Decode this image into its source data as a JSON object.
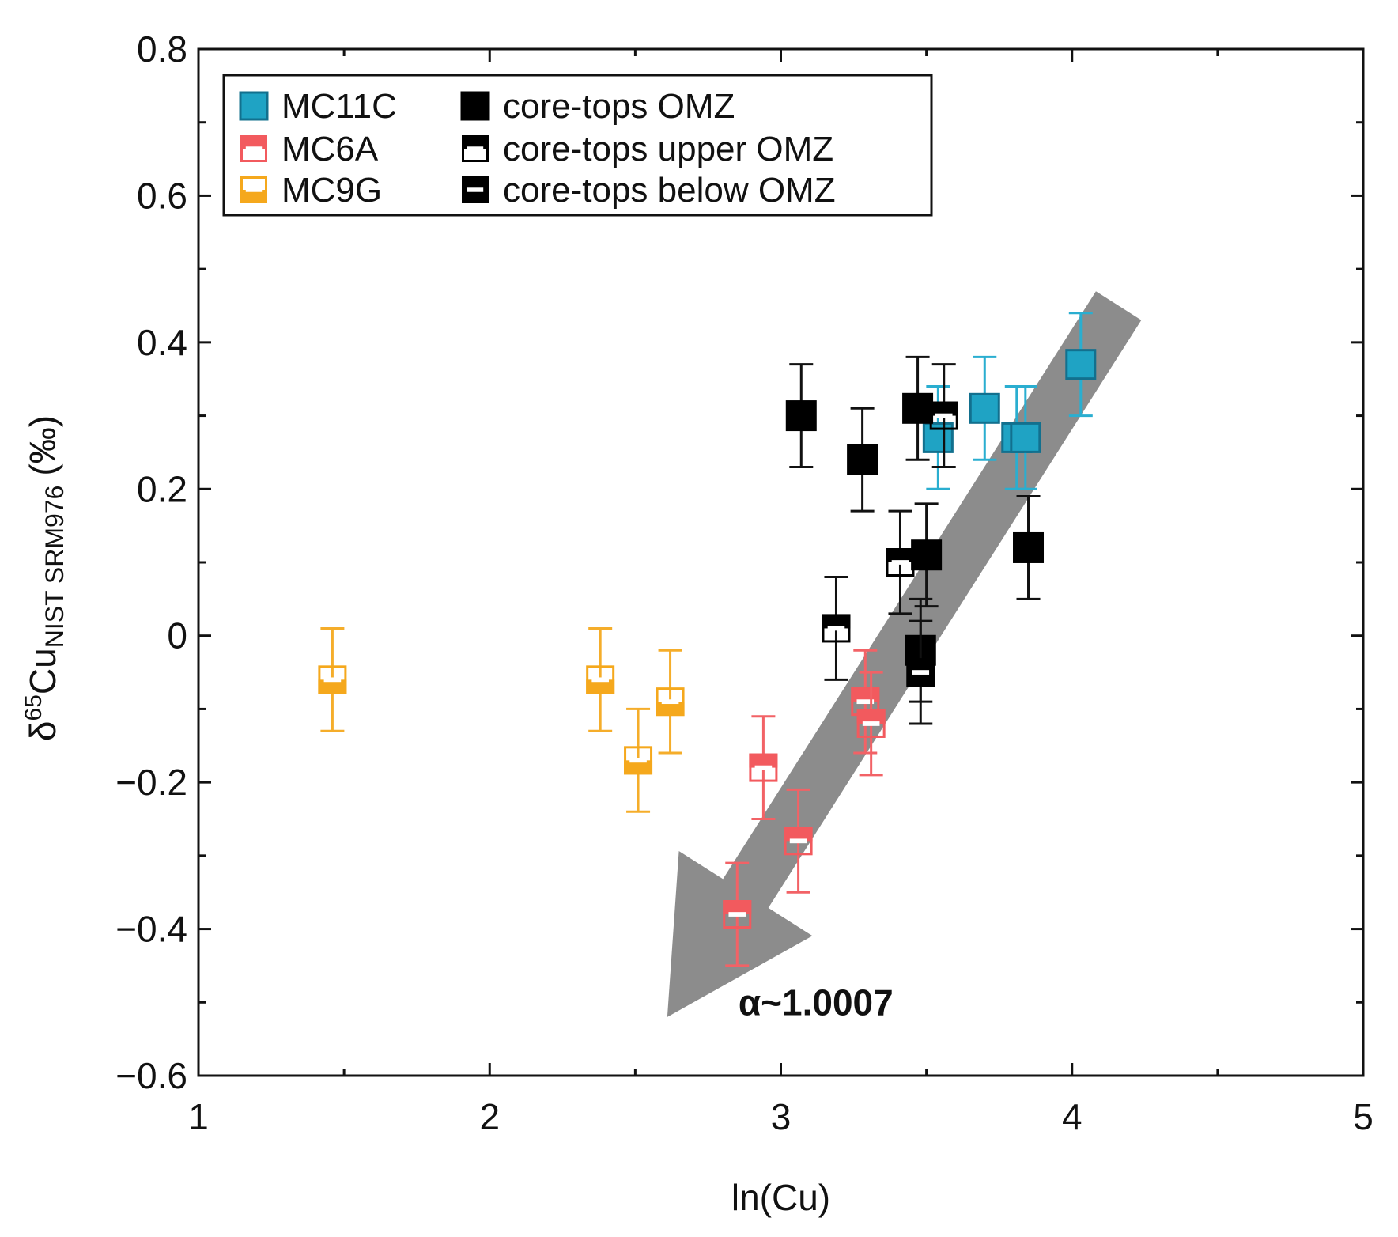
{
  "chart_data": {
    "type": "scatter",
    "xlabel": "ln(Cu)",
    "ylabel": {
      "base": "δ",
      "sup": "65",
      "main": "Cu",
      "sub": "NIST SRM976",
      "unit": "(‰)"
    },
    "xlim": [
      1,
      5
    ],
    "ylim": [
      -0.6,
      0.8
    ],
    "xticks": [
      1,
      2,
      3,
      4,
      5
    ],
    "yticks": [
      -0.6,
      -0.4,
      -0.2,
      0,
      0.2,
      0.4,
      0.6,
      0.8
    ],
    "ytick_labels": [
      "−0.6",
      "−0.4",
      "−0.2",
      "0",
      "0.2",
      "0.4",
      "0.6",
      "0.8"
    ],
    "grid": false,
    "legend_position": "top-left",
    "series": [
      {
        "name": "MC11C",
        "color": "#1fa3c4",
        "edge": "#12708e",
        "style": "filled",
        "errcolor": "#2aaed0",
        "points": [
          [
            3.54,
            0.27,
            0.07
          ],
          [
            3.7,
            0.31,
            0.07
          ],
          [
            3.81,
            0.27,
            0.07
          ],
          [
            3.84,
            0.27,
            0.07
          ],
          [
            4.03,
            0.37,
            0.07
          ]
        ]
      },
      {
        "name": "MC6A",
        "color": "#f25a5e",
        "style": "half-top",
        "errcolor": "#f26266",
        "points": [
          [
            2.85,
            -0.38,
            0.07
          ],
          [
            2.94,
            -0.18,
            0.07
          ],
          [
            3.06,
            -0.28,
            0.07
          ],
          [
            3.29,
            -0.09,
            0.07
          ],
          [
            3.31,
            -0.12,
            0.07
          ]
        ]
      },
      {
        "name": "MC9G",
        "color": "#f5a81c",
        "style": "half-bottom",
        "errcolor": "#f5ad2a",
        "points": [
          [
            1.46,
            -0.06,
            0.07
          ],
          [
            2.38,
            -0.06,
            0.07
          ],
          [
            2.51,
            -0.17,
            0.07
          ],
          [
            2.62,
            -0.09,
            0.07
          ]
        ]
      },
      {
        "name": "core-tops OMZ",
        "color": "#000000",
        "style": "filled",
        "errcolor": "#111111",
        "points": [
          [
            3.07,
            0.3,
            0.07
          ],
          [
            3.28,
            0.24,
            0.07
          ],
          [
            3.47,
            0.31,
            0.07
          ],
          [
            3.5,
            0.11,
            0.07
          ],
          [
            3.48,
            -0.02,
            0.07
          ],
          [
            3.85,
            0.12,
            0.07
          ]
        ]
      },
      {
        "name": "core-tops upper OMZ",
        "color": "#000000",
        "style": "half-top",
        "errcolor": "#111111",
        "points": [
          [
            3.19,
            0.01,
            0.07
          ],
          [
            3.41,
            0.1,
            0.07
          ],
          [
            3.56,
            0.3,
            0.07
          ]
        ]
      },
      {
        "name": "core-tops below OMZ",
        "color": "#000000",
        "style": "stripe",
        "errcolor": "#111111",
        "points": [
          [
            3.48,
            -0.05,
            0.07
          ]
        ]
      }
    ],
    "annotation": {
      "text": "α~1.0007",
      "arrow_from": [
        4.16,
        0.45
      ],
      "arrow_to": [
        2.61,
        -0.52
      ]
    }
  }
}
